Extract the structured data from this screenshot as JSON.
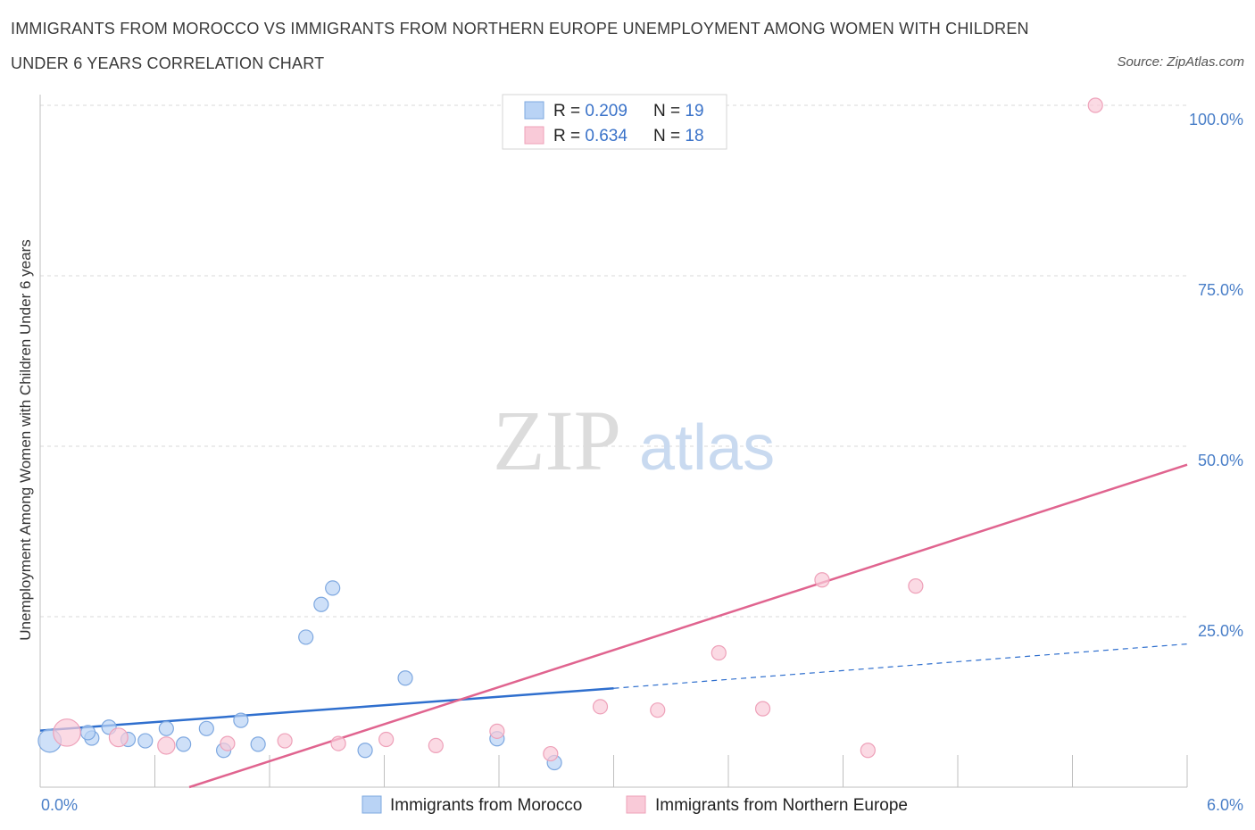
{
  "title_line1": "IMMIGRANTS FROM MOROCCO VS IMMIGRANTS FROM NORTHERN EUROPE UNEMPLOYMENT AMONG WOMEN WITH CHILDREN",
  "title_line2": "UNDER 6 YEARS CORRELATION CHART",
  "source": "Source: ZipAtlas.com",
  "watermark": {
    "zip": "ZIP",
    "atlas": "atlas"
  },
  "colors": {
    "morocco_fill": "#b9d3f5",
    "morocco_stroke": "#7ea8e0",
    "morocco_line": "#2f6fce",
    "ne_fill": "#f9cad8",
    "ne_stroke": "#eea1b9",
    "ne_line": "#e0648f",
    "grid": "#d9d9d9",
    "tick_text": "#4a7fc8"
  },
  "legend": {
    "rows": [
      {
        "r_label": "R = ",
        "r_value": "0.209",
        "n_label": "N = ",
        "n_value": "19",
        "series": "morocco"
      },
      {
        "r_label": "R = ",
        "r_value": "0.634",
        "n_label": "N = ",
        "n_value": "18",
        "series": "ne"
      }
    ]
  },
  "chart_data": {
    "type": "scatter",
    "title": "IMMIGRANTS FROM MOROCCO VS IMMIGRANTS FROM NORTHERN EUROPE UNEMPLOYMENT AMONG WOMEN WITH CHILDREN UNDER 6 YEARS CORRELATION CHART",
    "xlabel": "",
    "ylabel": "Unemployment Among Women with Children Under 6 years",
    "xlim": [
      0,
      6
    ],
    "ylim": [
      0,
      100
    ],
    "x_tick_labels": [
      "0.0%",
      "6.0%"
    ],
    "y_tick_labels": [
      "25.0%",
      "50.0%",
      "75.0%",
      "100.0%"
    ],
    "y_ticks": [
      25,
      50,
      75,
      100
    ],
    "grid": true,
    "legend_position": "top-center",
    "series": [
      {
        "name": "Immigrants from Morocco",
        "key": "morocco",
        "points": [
          {
            "x": 0.05,
            "y": 6.8,
            "s": 1.6
          },
          {
            "x": 0.27,
            "y": 7.2,
            "s": 1.0
          },
          {
            "x": 0.25,
            "y": 8.0,
            "s": 1.0
          },
          {
            "x": 0.36,
            "y": 8.8,
            "s": 1.0
          },
          {
            "x": 0.46,
            "y": 7.0,
            "s": 1.0
          },
          {
            "x": 0.55,
            "y": 6.8,
            "s": 1.0
          },
          {
            "x": 0.66,
            "y": 8.6,
            "s": 1.0
          },
          {
            "x": 0.75,
            "y": 6.3,
            "s": 1.0
          },
          {
            "x": 0.87,
            "y": 8.6,
            "s": 1.0
          },
          {
            "x": 0.96,
            "y": 5.4,
            "s": 1.0
          },
          {
            "x": 1.05,
            "y": 9.8,
            "s": 1.0
          },
          {
            "x": 1.14,
            "y": 6.3,
            "s": 1.0
          },
          {
            "x": 1.39,
            "y": 22.0,
            "s": 1.0
          },
          {
            "x": 1.47,
            "y": 26.8,
            "s": 1.0
          },
          {
            "x": 1.53,
            "y": 29.2,
            "s": 1.0
          },
          {
            "x": 1.7,
            "y": 5.4,
            "s": 1.0
          },
          {
            "x": 1.91,
            "y": 16.0,
            "s": 1.0
          },
          {
            "x": 2.39,
            "y": 7.1,
            "s": 1.0
          },
          {
            "x": 2.69,
            "y": 3.6,
            "s": 1.0
          }
        ],
        "trend": {
          "x1": 0.0,
          "y1": 8.3,
          "x2": 3.0,
          "y2": 14.5,
          "dashed_to_x": 6.0,
          "dashed_to_y": 21.0
        }
      },
      {
        "name": "Immigrants from Northern Europe",
        "key": "ne",
        "points": [
          {
            "x": 0.14,
            "y": 8.0,
            "s": 1.9
          },
          {
            "x": 0.41,
            "y": 7.3,
            "s": 1.3
          },
          {
            "x": 0.66,
            "y": 6.1,
            "s": 1.2
          },
          {
            "x": 0.98,
            "y": 6.4,
            "s": 1.0
          },
          {
            "x": 1.28,
            "y": 6.8,
            "s": 1.0
          },
          {
            "x": 1.56,
            "y": 6.4,
            "s": 1.0
          },
          {
            "x": 1.81,
            "y": 7.0,
            "s": 1.0
          },
          {
            "x": 2.07,
            "y": 6.1,
            "s": 1.0
          },
          {
            "x": 2.39,
            "y": 8.2,
            "s": 1.0
          },
          {
            "x": 2.67,
            "y": 4.9,
            "s": 1.0
          },
          {
            "x": 2.93,
            "y": 11.8,
            "s": 1.0
          },
          {
            "x": 3.23,
            "y": 11.3,
            "s": 1.0
          },
          {
            "x": 3.55,
            "y": 19.7,
            "s": 1.0
          },
          {
            "x": 3.78,
            "y": 11.5,
            "s": 1.0
          },
          {
            "x": 4.09,
            "y": 30.4,
            "s": 1.0
          },
          {
            "x": 4.33,
            "y": 5.4,
            "s": 1.0
          },
          {
            "x": 4.58,
            "y": 29.5,
            "s": 1.0
          },
          {
            "x": 5.52,
            "y": 100.0,
            "s": 1.0
          }
        ],
        "trend": {
          "x1": 0.78,
          "y1": 0.0,
          "x2": 6.0,
          "y2": 47.3
        }
      }
    ]
  }
}
